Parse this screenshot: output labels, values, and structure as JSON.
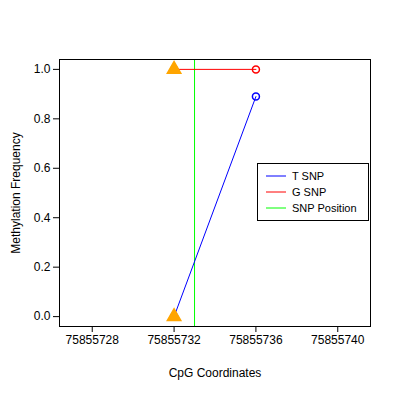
{
  "chart_data": {
    "type": "line",
    "x_label": "CpG Coordinates",
    "y_label": "Methylation Frequency",
    "x": [
      75855732,
      75855736
    ],
    "series": [
      {
        "name": "T SNP",
        "color": "#0000ff",
        "values": [
          0.0,
          0.89
        ],
        "marker": "circle",
        "line_style": "solid"
      },
      {
        "name": "G SNP",
        "color": "#ff0000",
        "values": [
          1.0,
          1.0
        ],
        "marker": "circle",
        "line_style": "solid"
      }
    ],
    "highlight": {
      "x": [
        75855732,
        75855732
      ],
      "y": [
        0.0,
        1.0
      ],
      "color": "#ffa500",
      "marker": "triangle"
    },
    "vlines": [
      {
        "name": "SNP Position",
        "x": 75855733,
        "color": "#00ff00"
      }
    ],
    "xlim": [
      75855726.4,
      75855741.6
    ],
    "xticks": [
      75855728,
      75855732,
      75855736,
      75855740
    ],
    "ylim": [
      -0.04,
      1.04
    ],
    "yticks": [
      {
        "value": 0,
        "label": "0.0"
      },
      0.2,
      0.4,
      0.6,
      0.8,
      {
        "value": 1,
        "label": "1.0"
      }
    ],
    "legend": "right",
    "grid": false
  }
}
